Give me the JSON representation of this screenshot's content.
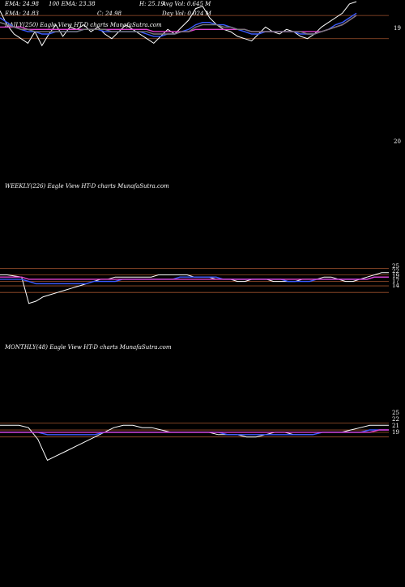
{
  "header": {
    "row1": [
      "EMA: 24.98",
      "100 EMA: 23.38",
      "",
      "H: 25.19",
      "Avg Vol: 0.645 M"
    ],
    "row2": [
      "EMA: 24.83",
      "",
      "C: 24.98",
      "",
      "Day Vol: 0.024 M"
    ],
    "daily_caption": "DAILY(250) Eagle  View  HT-D charts MunafaSutra.com"
  },
  "panels": {
    "weekly_caption": "WEEKLY(226) Eagle  View  HT-D charts MunafaSutra.com",
    "monthly_caption": "MONTHLY(48) Eagle  View  HT-D charts MunafaSutra.com"
  },
  "colors": {
    "background": "#000000",
    "price": "#ffffff",
    "ema_short": "#3b5bff",
    "ema_long": "#e040d0",
    "ema_mid": "#7a7a7a",
    "level": "#a0522d"
  },
  "chart_data": [
    {
      "type": "line",
      "panel": "daily",
      "ylim": [
        18.5,
        20.6
      ],
      "y_ticks": [
        "20",
        "19"
      ],
      "levels": [
        20.0,
        19.0
      ],
      "series": [
        {
          "role": "price",
          "values": [
            20.2,
            19.6,
            19.2,
            19.0,
            18.8,
            19.3,
            18.7,
            19.2,
            19.6,
            19.1,
            19.5,
            19.4,
            19.6,
            19.3,
            19.5,
            19.2,
            19.0,
            19.3,
            19.6,
            19.4,
            19.2,
            19.0,
            18.8,
            19.1,
            19.4,
            19.2,
            19.5,
            19.8,
            20.3,
            20.4,
            19.9,
            19.6,
            19.4,
            19.3,
            19.1,
            19.0,
            18.9,
            19.2,
            19.5,
            19.3,
            19.2,
            19.4,
            19.3,
            19.1,
            19.0,
            19.2,
            19.5,
            19.7,
            19.9,
            20.1,
            20.5,
            20.6
          ]
        },
        {
          "role": "ema_short",
          "values": [
            19.9,
            19.7,
            19.5,
            19.4,
            19.3,
            19.3,
            19.2,
            19.2,
            19.3,
            19.3,
            19.3,
            19.3,
            19.4,
            19.4,
            19.4,
            19.3,
            19.3,
            19.3,
            19.3,
            19.3,
            19.3,
            19.2,
            19.1,
            19.1,
            19.2,
            19.2,
            19.3,
            19.4,
            19.6,
            19.7,
            19.7,
            19.6,
            19.6,
            19.5,
            19.4,
            19.3,
            19.2,
            19.2,
            19.3,
            19.3,
            19.3,
            19.3,
            19.3,
            19.2,
            19.2,
            19.2,
            19.3,
            19.4,
            19.6,
            19.7,
            19.9,
            20.1
          ]
        },
        {
          "role": "ema_long",
          "values": [
            19.5,
            19.5,
            19.5,
            19.5,
            19.4,
            19.4,
            19.4,
            19.4,
            19.4,
            19.4,
            19.4,
            19.4,
            19.4,
            19.4,
            19.4,
            19.4,
            19.4,
            19.4,
            19.4,
            19.4,
            19.4,
            19.4,
            19.3,
            19.3,
            19.3,
            19.3,
            19.3,
            19.3,
            19.4,
            19.4,
            19.4,
            19.4,
            19.4,
            19.4,
            19.4,
            19.4,
            19.3,
            19.3,
            19.3,
            19.3,
            19.3,
            19.3,
            19.3,
            19.3,
            19.3,
            19.3,
            19.3,
            19.4,
            19.5,
            19.6,
            19.8,
            20.0
          ]
        },
        {
          "role": "ema_mid",
          "values": [
            19.7,
            19.6,
            19.5,
            19.4,
            19.4,
            19.3,
            19.3,
            19.3,
            19.3,
            19.3,
            19.3,
            19.3,
            19.4,
            19.4,
            19.4,
            19.4,
            19.3,
            19.3,
            19.3,
            19.3,
            19.3,
            19.3,
            19.2,
            19.2,
            19.2,
            19.2,
            19.3,
            19.3,
            19.5,
            19.6,
            19.6,
            19.6,
            19.5,
            19.5,
            19.4,
            19.4,
            19.3,
            19.3,
            19.3,
            19.3,
            19.3,
            19.3,
            19.3,
            19.3,
            19.2,
            19.2,
            19.3,
            19.4,
            19.5,
            19.6,
            19.8,
            20.0
          ]
        }
      ]
    },
    {
      "type": "line",
      "panel": "weekly",
      "ylim": [
        10,
        27
      ],
      "y_ticks": [
        "25",
        "22",
        "19",
        "17",
        "14"
      ],
      "levels": [
        25,
        22,
        19,
        17,
        14
      ],
      "series": [
        {
          "role": "price",
          "values": [
            22,
            22,
            21.5,
            21,
            9,
            10,
            12,
            13,
            14,
            15,
            16,
            17,
            18,
            19,
            20,
            20,
            21,
            21,
            21,
            21,
            21,
            21,
            22,
            22,
            22,
            22,
            22,
            21,
            21,
            21,
            20,
            20,
            20,
            19,
            19,
            20,
            20,
            20,
            19,
            19,
            19,
            19,
            20,
            20,
            20,
            21,
            21,
            20,
            19,
            19,
            20,
            21,
            22,
            23,
            23
          ]
        },
        {
          "role": "ema_short",
          "values": [
            20,
            20,
            20,
            20,
            19,
            18,
            18,
            18,
            18,
            18,
            18,
            18,
            18,
            19,
            19,
            19,
            19,
            20,
            20,
            20,
            20,
            20,
            20,
            20,
            20,
            21,
            21,
            21,
            21,
            21,
            21,
            20,
            20,
            20,
            20,
            20,
            20,
            20,
            20,
            20,
            19,
            19,
            19,
            19,
            20,
            20,
            20,
            20,
            20,
            20,
            20,
            20,
            21,
            21,
            21
          ]
        },
        {
          "role": "ema_long",
          "values": [
            21,
            21,
            21,
            21,
            20,
            20,
            20,
            20,
            20,
            20,
            20,
            20,
            20,
            20,
            20,
            20,
            20,
            20,
            20,
            20,
            20,
            20,
            20,
            20,
            20,
            20,
            20,
            20,
            20,
            20,
            20,
            20,
            20,
            20,
            20,
            20,
            20,
            20,
            20,
            20,
            20,
            20,
            20,
            20,
            20,
            20,
            20,
            20,
            20,
            20,
            20,
            20,
            21,
            21,
            21
          ]
        }
      ]
    },
    {
      "type": "line",
      "panel": "monthly",
      "ylim": [
        5,
        30
      ],
      "y_ticks": [
        "25",
        "22",
        "21",
        "19"
      ],
      "levels": [
        25,
        22,
        21,
        19
      ],
      "series": [
        {
          "role": "price",
          "values": [
            24,
            24,
            24,
            23,
            18,
            9,
            11,
            13,
            15,
            17,
            19,
            21,
            23,
            24,
            24,
            23,
            23,
            22,
            21,
            21,
            21,
            21,
            21,
            20,
            20,
            20,
            19,
            19,
            20,
            21,
            21,
            20,
            20,
            20,
            21,
            21,
            21,
            22,
            23,
            24,
            24,
            24
          ]
        },
        {
          "role": "ema_short",
          "values": [
            21,
            21,
            21,
            21,
            21,
            20,
            20,
            20,
            20,
            20,
            20,
            21,
            21,
            21,
            21,
            21,
            21,
            21,
            21,
            21,
            21,
            21,
            21,
            21,
            20,
            20,
            20,
            20,
            20,
            20,
            20,
            20,
            20,
            20,
            21,
            21,
            21,
            21,
            21,
            22,
            22,
            22
          ]
        },
        {
          "role": "ema_long",
          "values": [
            21,
            21,
            21,
            21,
            21,
            21,
            21,
            21,
            21,
            21,
            21,
            21,
            21,
            21,
            21,
            21,
            21,
            21,
            21,
            21,
            21,
            21,
            21,
            21,
            21,
            21,
            21,
            21,
            21,
            21,
            21,
            21,
            21,
            21,
            21,
            21,
            21,
            21,
            21,
            21,
            22,
            22
          ]
        }
      ]
    }
  ]
}
